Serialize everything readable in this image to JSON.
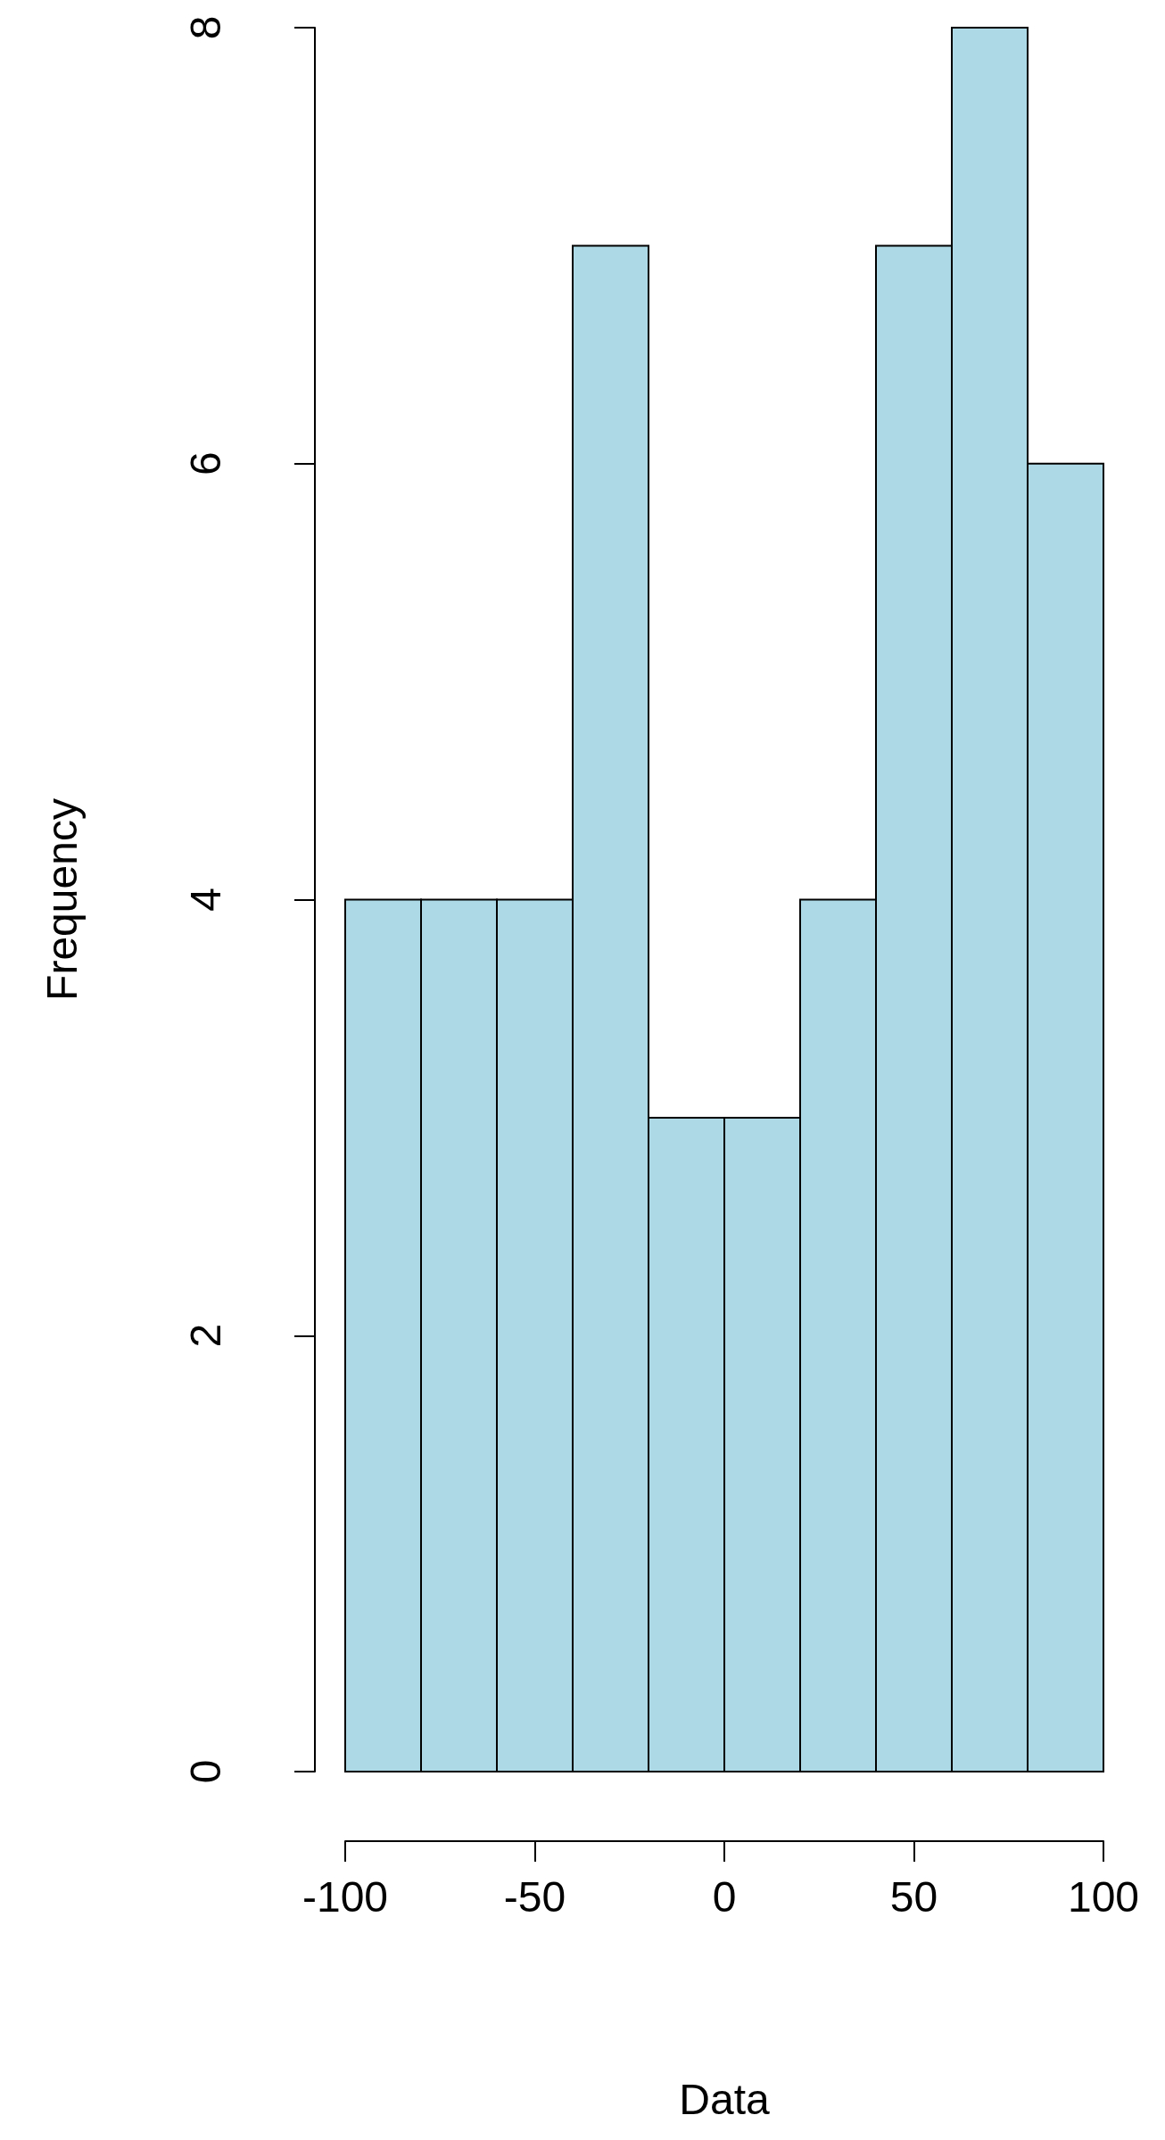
{
  "chart_data": {
    "type": "histogram",
    "xlabel": "Data",
    "ylabel": "Frequency",
    "bins": [
      -100,
      -80,
      -60,
      -40,
      -20,
      0,
      20,
      40,
      60,
      80,
      100
    ],
    "values": [
      4,
      4,
      4,
      7,
      3,
      3,
      4,
      7,
      8,
      6
    ],
    "color": "#add8e6",
    "xlim": [
      -100,
      100
    ],
    "xticks": [
      -100,
      -50,
      0,
      50,
      100
    ],
    "ylim": [
      0,
      8
    ],
    "yticks": [
      0,
      2,
      4,
      6,
      8
    ]
  }
}
